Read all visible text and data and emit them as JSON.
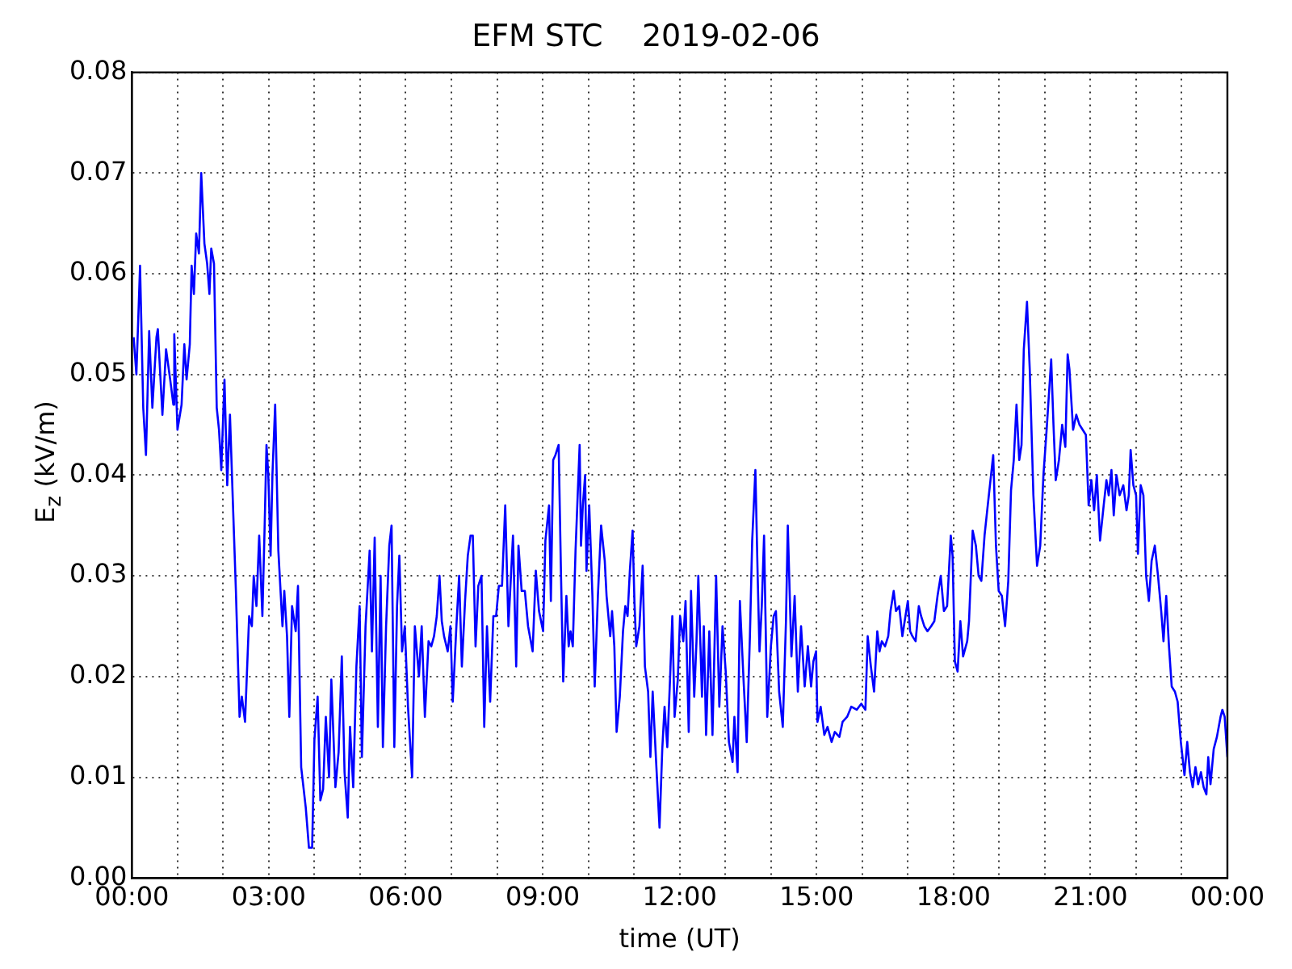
{
  "chart_data": {
    "type": "line",
    "title": "EFM STC    2019-02-06",
    "xlabel": "time (UT)",
    "ylabel": "E$_{z}$ (kV/m)",
    "xlim": [
      0,
      24
    ],
    "xticks": [
      {
        "value": 0,
        "label": "00:00"
      },
      {
        "value": 1,
        "label": null
      },
      {
        "value": 2,
        "label": null
      },
      {
        "value": 3,
        "label": "03:00"
      },
      {
        "value": 4,
        "label": null
      },
      {
        "value": 5,
        "label": null
      },
      {
        "value": 6,
        "label": "06:00"
      },
      {
        "value": 7,
        "label": null
      },
      {
        "value": 8,
        "label": null
      },
      {
        "value": 9,
        "label": "09:00"
      },
      {
        "value": 10,
        "label": null
      },
      {
        "value": 11,
        "label": null
      },
      {
        "value": 12,
        "label": "12:00"
      },
      {
        "value": 13,
        "label": null
      },
      {
        "value": 14,
        "label": null
      },
      {
        "value": 15,
        "label": "15:00"
      },
      {
        "value": 16,
        "label": null
      },
      {
        "value": 17,
        "label": null
      },
      {
        "value": 18,
        "label": "18:00"
      },
      {
        "value": 19,
        "label": null
      },
      {
        "value": 20,
        "label": null
      },
      {
        "value": 21,
        "label": "21:00"
      },
      {
        "value": 22,
        "label": null
      },
      {
        "value": 23,
        "label": null
      },
      {
        "value": 24,
        "label": "00:00"
      }
    ],
    "ylim": [
      0,
      0.08
    ],
    "yticks": [
      {
        "value": 0,
        "label": "0.00"
      },
      {
        "value": 0.01,
        "label": "0.01"
      },
      {
        "value": 0.02,
        "label": "0.02"
      },
      {
        "value": 0.03,
        "label": "0.03"
      },
      {
        "value": 0.04,
        "label": "0.04"
      },
      {
        "value": 0.05,
        "label": "0.05"
      },
      {
        "value": 0.06,
        "label": "0.06"
      },
      {
        "value": 0.07,
        "label": "0.07"
      },
      {
        "value": 0.08,
        "label": "0.08"
      }
    ],
    "grid": true,
    "marker": "none",
    "line_style": "solid",
    "series": [
      {
        "color": "#0000ff",
        "x": [
          0.04,
          0.1,
          0.18,
          0.25,
          0.31,
          0.38,
          0.45,
          0.54,
          0.57,
          0.67,
          0.75,
          0.84,
          0.91,
          0.93,
          1.0,
          1.09,
          1.15,
          1.2,
          1.27,
          1.31,
          1.36,
          1.41,
          1.47,
          1.52,
          1.59,
          1.65,
          1.7,
          1.74,
          1.8,
          1.86,
          1.91,
          1.96,
          2.03,
          2.09,
          2.15,
          2.21,
          2.28,
          2.36,
          2.41,
          2.48,
          2.57,
          2.63,
          2.67,
          2.73,
          2.79,
          2.86,
          2.91,
          2.95,
          2.99,
          3.04,
          3.08,
          3.14,
          3.21,
          3.3,
          3.34,
          3.4,
          3.45,
          3.51,
          3.59,
          3.64,
          3.71,
          3.81,
          3.88,
          3.95,
          4.0,
          4.07,
          4.13,
          4.19,
          4.25,
          4.32,
          4.37,
          4.46,
          4.53,
          4.6,
          4.66,
          4.73,
          4.78,
          4.85,
          4.92,
          4.99,
          5.04,
          5.12,
          5.21,
          5.26,
          5.32,
          5.39,
          5.45,
          5.5,
          5.57,
          5.64,
          5.69,
          5.75,
          5.81,
          5.86,
          5.92,
          5.98,
          6.05,
          6.14,
          6.2,
          6.29,
          6.35,
          6.42,
          6.5,
          6.56,
          6.62,
          6.68,
          6.74,
          6.79,
          6.84,
          6.92,
          6.98,
          7.03,
          7.11,
          7.17,
          7.23,
          7.3,
          7.36,
          7.42,
          7.47,
          7.53,
          7.59,
          7.66,
          7.72,
          7.78,
          7.85,
          7.92,
          7.98,
          8.04,
          8.11,
          8.18,
          8.25,
          8.35,
          8.42,
          8.47,
          8.54,
          8.61,
          8.68,
          8.78,
          8.85,
          8.92,
          9.01,
          9.06,
          9.14,
          9.18,
          9.23,
          9.28,
          9.35,
          9.4,
          9.45,
          9.52,
          9.57,
          9.61,
          9.66,
          9.72,
          9.81,
          9.84,
          9.88,
          9.93,
          9.96,
          10.02,
          10.09,
          10.14,
          10.21,
          10.28,
          10.36,
          10.4,
          10.48,
          10.52,
          10.57,
          10.62,
          10.69,
          10.76,
          10.81,
          10.86,
          10.91,
          10.97,
          11.01,
          11.05,
          11.12,
          11.19,
          11.24,
          11.31,
          11.36,
          11.41,
          11.48,
          11.56,
          11.62,
          11.67,
          11.73,
          11.79,
          11.84,
          11.89,
          11.96,
          12.01,
          12.08,
          12.13,
          12.2,
          12.25,
          12.32,
          12.37,
          12.41,
          12.49,
          12.53,
          12.58,
          12.65,
          12.72,
          12.8,
          12.87,
          12.94,
          13.01,
          13.08,
          13.16,
          13.2,
          13.27,
          13.32,
          13.4,
          13.47,
          13.54,
          13.59,
          13.66,
          13.71,
          13.75,
          13.8,
          13.85,
          13.92,
          14.0,
          14.06,
          14.11,
          14.18,
          14.26,
          14.33,
          14.37,
          14.45,
          14.52,
          14.59,
          14.66,
          14.74,
          14.81,
          14.88,
          14.93,
          14.99,
          15.02,
          15.09,
          15.17,
          15.24,
          15.33,
          15.4,
          15.5,
          15.57,
          15.67,
          15.76,
          15.88,
          15.98,
          16.07,
          16.12,
          16.19,
          16.26,
          16.33,
          16.38,
          16.43,
          16.5,
          16.57,
          16.62,
          16.69,
          16.74,
          16.81,
          16.88,
          16.93,
          17.0,
          17.05,
          17.1,
          17.17,
          17.24,
          17.29,
          17.36,
          17.43,
          17.51,
          17.58,
          17.65,
          17.72,
          17.79,
          17.86,
          17.94,
          17.98,
          18.03,
          18.09,
          18.15,
          18.21,
          18.3,
          18.34,
          18.42,
          18.49,
          18.55,
          18.61,
          18.68,
          18.75,
          18.81,
          18.87,
          18.93,
          18.99,
          19.06,
          19.13,
          19.2,
          19.26,
          19.32,
          19.38,
          19.44,
          19.49,
          19.54,
          19.61,
          19.67,
          19.75,
          19.83,
          19.9,
          19.97,
          20.04,
          20.09,
          20.14,
          20.19,
          20.24,
          20.31,
          20.38,
          20.45,
          20.5,
          20.54,
          20.62,
          20.69,
          20.76,
          20.83,
          20.9,
          20.96,
          21.02,
          21.08,
          21.14,
          21.21,
          21.29,
          21.35,
          21.4,
          21.46,
          21.51,
          21.57,
          21.64,
          21.72,
          21.79,
          21.84,
          21.88,
          21.94,
          22.0,
          22.04,
          22.1,
          22.16,
          22.22,
          22.28,
          22.34,
          22.41,
          22.48,
          22.55,
          22.6,
          22.66,
          22.72,
          22.78,
          22.85,
          22.91,
          22.98,
          23.06,
          23.12,
          23.18,
          23.24,
          23.3,
          23.36,
          23.42,
          23.48,
          23.54,
          23.58,
          23.63,
          23.7,
          23.77,
          23.85,
          23.89,
          23.94,
          24.0
        ],
        "values": [
          0.0537,
          0.05,
          0.0608,
          0.0467,
          0.042,
          0.0543,
          0.0467,
          0.0537,
          0.0545,
          0.046,
          0.0525,
          0.0495,
          0.047,
          0.054,
          0.0445,
          0.047,
          0.053,
          0.0495,
          0.053,
          0.0608,
          0.058,
          0.064,
          0.062,
          0.07,
          0.063,
          0.061,
          0.058,
          0.0625,
          0.061,
          0.0467,
          0.0445,
          0.0405,
          0.0495,
          0.039,
          0.046,
          0.0378,
          0.0285,
          0.016,
          0.018,
          0.0155,
          0.026,
          0.025,
          0.03,
          0.027,
          0.034,
          0.026,
          0.035,
          0.043,
          0.04,
          0.032,
          0.04,
          0.047,
          0.0325,
          0.025,
          0.0285,
          0.024,
          0.016,
          0.027,
          0.0245,
          0.029,
          0.011,
          0.007,
          0.003,
          0.003,
          0.0137,
          0.018,
          0.0077,
          0.0088,
          0.016,
          0.01,
          0.0197,
          0.009,
          0.0125,
          0.022,
          0.0105,
          0.006,
          0.015,
          0.009,
          0.021,
          0.027,
          0.012,
          0.025,
          0.0325,
          0.0225,
          0.0338,
          0.015,
          0.03,
          0.013,
          0.025,
          0.033,
          0.035,
          0.013,
          0.027,
          0.032,
          0.0225,
          0.025,
          0.017,
          0.01,
          0.025,
          0.02,
          0.025,
          0.016,
          0.0235,
          0.023,
          0.024,
          0.026,
          0.03,
          0.0255,
          0.024,
          0.0225,
          0.025,
          0.0175,
          0.025,
          0.03,
          0.021,
          0.0275,
          0.032,
          0.034,
          0.034,
          0.023,
          0.029,
          0.03,
          0.015,
          0.025,
          0.0175,
          0.026,
          0.026,
          0.029,
          0.029,
          0.037,
          0.025,
          0.034,
          0.021,
          0.033,
          0.0285,
          0.0285,
          0.025,
          0.0225,
          0.0305,
          0.0265,
          0.0245,
          0.0335,
          0.037,
          0.0275,
          0.0415,
          0.042,
          0.043,
          0.0305,
          0.0195,
          0.028,
          0.023,
          0.0245,
          0.023,
          0.0325,
          0.043,
          0.033,
          0.037,
          0.04,
          0.0305,
          0.037,
          0.028,
          0.019,
          0.028,
          0.035,
          0.0315,
          0.028,
          0.024,
          0.0265,
          0.023,
          0.0145,
          0.018,
          0.0245,
          0.027,
          0.026,
          0.0305,
          0.0345,
          0.0275,
          0.023,
          0.025,
          0.031,
          0.021,
          0.0185,
          0.012,
          0.0185,
          0.012,
          0.005,
          0.0128,
          0.017,
          0.013,
          0.0197,
          0.026,
          0.016,
          0.0197,
          0.026,
          0.0235,
          0.0275,
          0.0145,
          0.0285,
          0.018,
          0.0235,
          0.03,
          0.018,
          0.025,
          0.0142,
          0.0245,
          0.0142,
          0.03,
          0.017,
          0.025,
          0.0205,
          0.0135,
          0.0115,
          0.016,
          0.0105,
          0.0275,
          0.0197,
          0.0135,
          0.024,
          0.0335,
          0.0405,
          0.03,
          0.0225,
          0.027,
          0.034,
          0.016,
          0.023,
          0.026,
          0.0265,
          0.0185,
          0.015,
          0.0255,
          0.035,
          0.022,
          0.028,
          0.0185,
          0.025,
          0.019,
          0.023,
          0.019,
          0.0215,
          0.0225,
          0.0155,
          0.017,
          0.0142,
          0.015,
          0.0135,
          0.0145,
          0.014,
          0.0155,
          0.016,
          0.017,
          0.0167,
          0.0173,
          0.0167,
          0.024,
          0.021,
          0.0185,
          0.0245,
          0.0225,
          0.0235,
          0.023,
          0.024,
          0.0265,
          0.0285,
          0.0265,
          0.027,
          0.024,
          0.0255,
          0.0275,
          0.0245,
          0.024,
          0.0235,
          0.027,
          0.026,
          0.025,
          0.0245,
          0.025,
          0.0255,
          0.028,
          0.03,
          0.0265,
          0.027,
          0.034,
          0.032,
          0.0215,
          0.0205,
          0.0255,
          0.022,
          0.0235,
          0.0255,
          0.0345,
          0.033,
          0.03,
          0.0295,
          0.034,
          0.037,
          0.0395,
          0.042,
          0.033,
          0.0285,
          0.028,
          0.025,
          0.0295,
          0.0385,
          0.0415,
          0.047,
          0.0415,
          0.043,
          0.0525,
          0.0572,
          0.0505,
          0.038,
          0.031,
          0.033,
          0.04,
          0.0445,
          0.048,
          0.0515,
          0.045,
          0.0395,
          0.0415,
          0.045,
          0.0428,
          0.052,
          0.0505,
          0.0445,
          0.046,
          0.045,
          0.0445,
          0.044,
          0.037,
          0.0395,
          0.0365,
          0.04,
          0.0335,
          0.037,
          0.0395,
          0.038,
          0.0405,
          0.036,
          0.04,
          0.038,
          0.039,
          0.0365,
          0.038,
          0.0425,
          0.039,
          0.038,
          0.0322,
          0.039,
          0.038,
          0.03,
          0.0275,
          0.0315,
          0.033,
          0.03,
          0.0265,
          0.0235,
          0.028,
          0.023,
          0.019,
          0.0185,
          0.0175,
          0.0135,
          0.0102,
          0.0135,
          0.0105,
          0.009,
          0.011,
          0.0093,
          0.0105,
          0.009,
          0.0083,
          0.012,
          0.0093,
          0.0128,
          0.014,
          0.016,
          0.0167,
          0.016,
          0.012
        ]
      }
    ]
  }
}
